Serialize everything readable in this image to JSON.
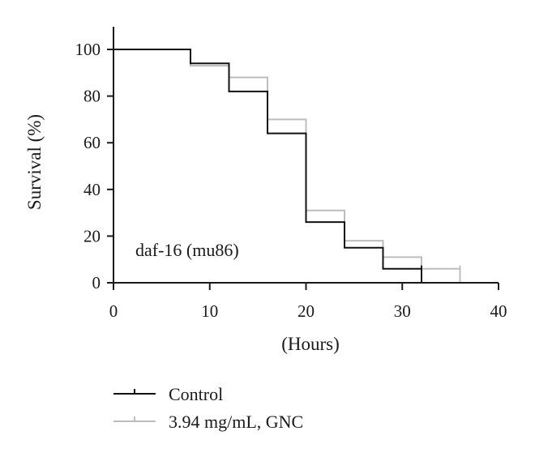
{
  "chart_data": {
    "type": "line",
    "step": true,
    "annotation": "daf-16 (mu86)",
    "xlabel": "(Hours)",
    "ylabel": "Survival (%)",
    "xlim": [
      0,
      40
    ],
    "ylim": [
      0,
      100
    ],
    "xticks": [
      "0",
      "10",
      "20",
      "30",
      "40"
    ],
    "yticks": [
      "0",
      "20",
      "40",
      "60",
      "80",
      "100"
    ],
    "grid": false,
    "legend_position": "bottom-left",
    "series": [
      {
        "name": "Control",
        "color": "#111111",
        "x": [
          0,
          8,
          12,
          16,
          20,
          24,
          28,
          32
        ],
        "y": [
          100,
          94,
          82,
          64,
          26,
          15,
          6,
          0
        ]
      },
      {
        "name": "3.94 mg/mL, GNC",
        "color": "#bdbdbd",
        "x": [
          0,
          8,
          12,
          16,
          20,
          24,
          28,
          32,
          36
        ],
        "y": [
          100,
          93,
          88,
          70,
          31,
          18,
          11,
          6,
          0
        ]
      }
    ]
  }
}
